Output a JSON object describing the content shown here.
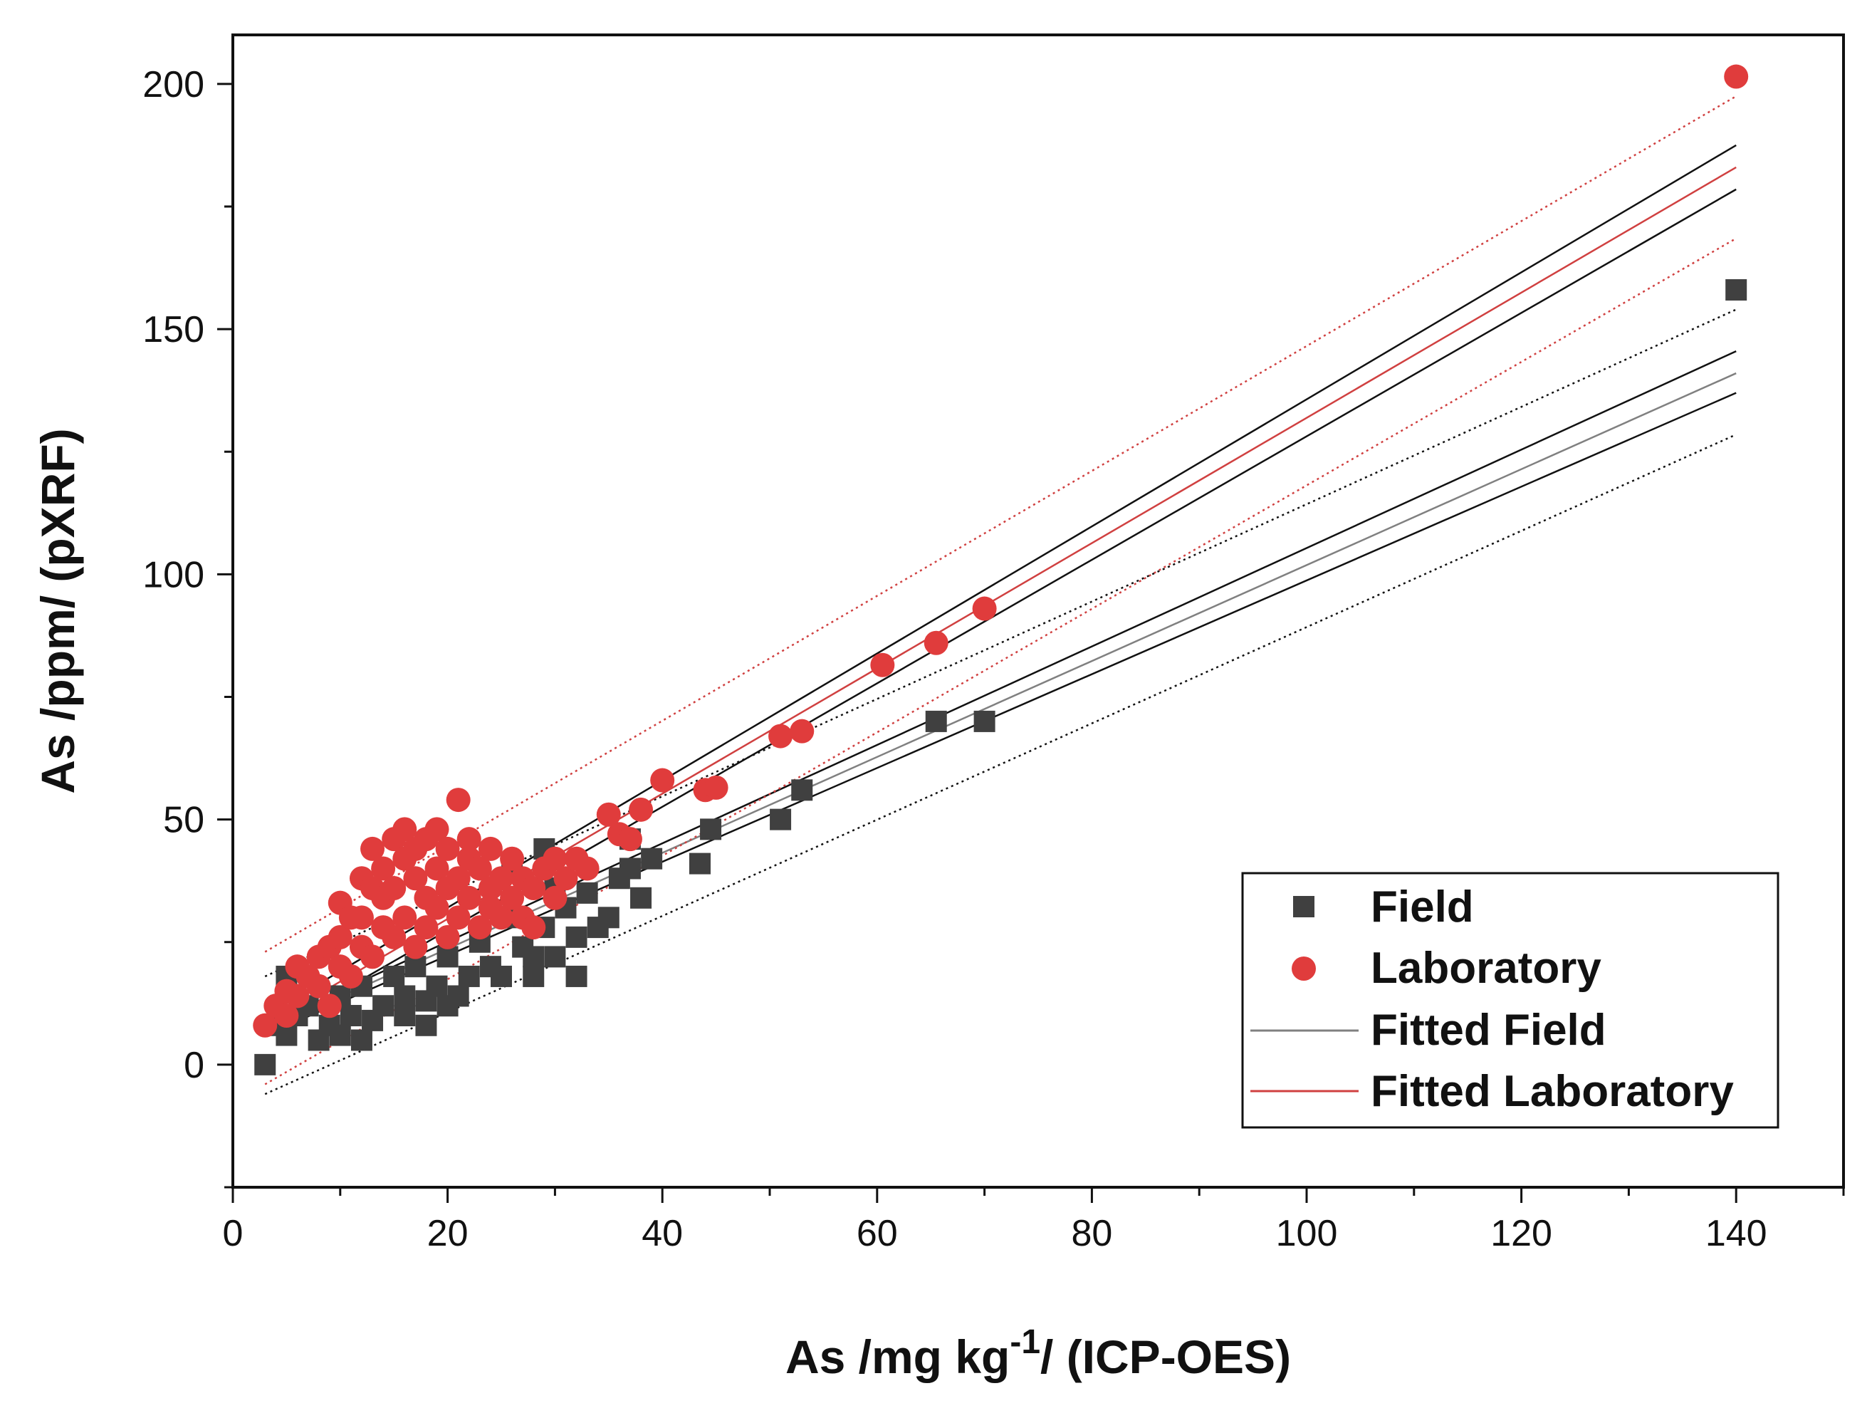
{
  "chart_data": {
    "type": "scatter",
    "title": "",
    "xlabel": "As /mg kg-1/ (ICP-OES)",
    "xlabel_parts": {
      "main": "As /mg kg",
      "sup": "-1",
      "tail": "/ (ICP-OES)"
    },
    "ylabel": "As /ppm/ (pXRF)",
    "xlim": [
      0,
      150
    ],
    "ylim": [
      -25,
      210
    ],
    "xticks": [
      0,
      20,
      40,
      60,
      80,
      100,
      120,
      140
    ],
    "xtick_labels": [
      "0",
      "20",
      "40",
      "60",
      "80",
      "100",
      "120",
      "140"
    ],
    "yticks": [
      0,
      50,
      100,
      150,
      200
    ],
    "ytick_labels": [
      "0",
      "50",
      "100",
      "150",
      "200"
    ],
    "grid": false,
    "legend_position": "bottom-right",
    "legend": [
      {
        "label": "Field",
        "marker": "square",
        "color": "#404040"
      },
      {
        "label": "Laboratory",
        "marker": "circle",
        "color": "#e03c3c"
      },
      {
        "label": "Fitted Field",
        "marker": "line",
        "color": "#808080"
      },
      {
        "label": "Fitted Laboratory",
        "marker": "line",
        "color": "#d04040"
      }
    ],
    "series": [
      {
        "name": "Field",
        "marker": "square",
        "color": "#404040",
        "points": [
          [
            3,
            0
          ],
          [
            4,
            8
          ],
          [
            5,
            18
          ],
          [
            5,
            6
          ],
          [
            6,
            10
          ],
          [
            7,
            12
          ],
          [
            8,
            5
          ],
          [
            9,
            8
          ],
          [
            10,
            14
          ],
          [
            10,
            6
          ],
          [
            11,
            10
          ],
          [
            12,
            5
          ],
          [
            12,
            16
          ],
          [
            13,
            9
          ],
          [
            14,
            12
          ],
          [
            15,
            18
          ],
          [
            16,
            10
          ],
          [
            16,
            14
          ],
          [
            17,
            20
          ],
          [
            18,
            8
          ],
          [
            18,
            13
          ],
          [
            19,
            16
          ],
          [
            20,
            12
          ],
          [
            20,
            22
          ],
          [
            21,
            14
          ],
          [
            22,
            18
          ],
          [
            23,
            25
          ],
          [
            24,
            20
          ],
          [
            25,
            18
          ],
          [
            26,
            30
          ],
          [
            26,
            40
          ],
          [
            27,
            24
          ],
          [
            28,
            18
          ],
          [
            28,
            22
          ],
          [
            29,
            44
          ],
          [
            29,
            28
          ],
          [
            30,
            22
          ],
          [
            30,
            36
          ],
          [
            31,
            32
          ],
          [
            32,
            18
          ],
          [
            32,
            26
          ],
          [
            33,
            35
          ],
          [
            34,
            28
          ],
          [
            35,
            30
          ],
          [
            36,
            38
          ],
          [
            37,
            40
          ],
          [
            37,
            46
          ],
          [
            38,
            34
          ],
          [
            39,
            42
          ],
          [
            43.5,
            41
          ],
          [
            44.5,
            48
          ],
          [
            51,
            50
          ],
          [
            53,
            56
          ],
          [
            65.5,
            70
          ],
          [
            70,
            70
          ],
          [
            140,
            158
          ]
        ]
      },
      {
        "name": "Laboratory",
        "marker": "circle",
        "color": "#e03c3c",
        "points": [
          [
            3,
            8
          ],
          [
            4,
            12
          ],
          [
            5,
            10
          ],
          [
            5,
            15
          ],
          [
            6,
            14
          ],
          [
            6,
            20
          ],
          [
            7,
            18
          ],
          [
            8,
            22
          ],
          [
            8,
            16
          ],
          [
            9,
            24
          ],
          [
            9,
            12
          ],
          [
            10,
            33
          ],
          [
            10,
            20
          ],
          [
            10,
            26
          ],
          [
            11,
            30
          ],
          [
            11,
            18
          ],
          [
            12,
            38
          ],
          [
            12,
            24
          ],
          [
            12,
            30
          ],
          [
            13,
            36
          ],
          [
            13,
            22
          ],
          [
            13,
            44
          ],
          [
            14,
            28
          ],
          [
            14,
            40
          ],
          [
            14,
            34
          ],
          [
            15,
            46
          ],
          [
            15,
            26
          ],
          [
            15,
            36
          ],
          [
            16,
            42
          ],
          [
            16,
            30
          ],
          [
            16,
            48
          ],
          [
            17,
            38
          ],
          [
            17,
            44
          ],
          [
            17,
            24
          ],
          [
            18,
            34
          ],
          [
            18,
            46
          ],
          [
            18,
            28
          ],
          [
            19,
            40
          ],
          [
            19,
            48
          ],
          [
            19,
            32
          ],
          [
            20,
            36
          ],
          [
            20,
            44
          ],
          [
            20,
            26
          ],
          [
            21,
            54
          ],
          [
            21,
            38
          ],
          [
            21,
            30
          ],
          [
            22,
            42
          ],
          [
            22,
            34
          ],
          [
            22,
            46
          ],
          [
            23,
            40
          ],
          [
            23,
            28
          ],
          [
            24,
            36
          ],
          [
            24,
            44
          ],
          [
            24,
            32
          ],
          [
            25,
            38
          ],
          [
            25,
            30
          ],
          [
            26,
            34
          ],
          [
            26,
            42
          ],
          [
            27,
            30
          ],
          [
            27,
            38
          ],
          [
            28,
            36
          ],
          [
            28,
            28
          ],
          [
            29,
            40
          ],
          [
            30,
            34
          ],
          [
            30,
            42
          ],
          [
            31,
            38
          ],
          [
            32,
            42
          ],
          [
            33,
            40
          ],
          [
            35,
            51
          ],
          [
            36,
            47
          ],
          [
            37,
            46
          ],
          [
            38,
            52
          ],
          [
            40,
            58
          ],
          [
            44,
            56
          ],
          [
            45,
            56.5
          ],
          [
            51,
            67
          ],
          [
            53,
            68
          ],
          [
            60.5,
            81.5
          ],
          [
            65.5,
            86
          ],
          [
            70,
            93
          ],
          [
            140,
            201.5
          ]
        ]
      }
    ],
    "fits": [
      {
        "name": "Fitted Field",
        "x": [
          3,
          140
        ],
        "y": [
          7,
          141
        ],
        "color": "#808080",
        "style": "solid"
      },
      {
        "name": "Field confidence upper",
        "x": [
          3,
          140
        ],
        "y": [
          8,
          145.5
        ],
        "color": "#111111",
        "style": "solid"
      },
      {
        "name": "Field confidence lower",
        "x": [
          3,
          140
        ],
        "y": [
          6,
          137
        ],
        "color": "#111111",
        "style": "solid"
      },
      {
        "name": "Field prediction upper",
        "x": [
          3,
          140
        ],
        "y": [
          18,
          154
        ],
        "color": "#111111",
        "style": "dotted"
      },
      {
        "name": "Field prediction lower",
        "x": [
          3,
          140
        ],
        "y": [
          -6,
          128.5
        ],
        "color": "#111111",
        "style": "dotted"
      },
      {
        "name": "Fitted Laboratory",
        "x": [
          3,
          140
        ],
        "y": [
          8,
          183
        ],
        "color": "#d04040",
        "style": "solid"
      },
      {
        "name": "Laboratory confidence upper",
        "x": [
          3,
          140
        ],
        "y": [
          10,
          187.5
        ],
        "color": "#111111",
        "style": "solid"
      },
      {
        "name": "Laboratory confidence lower",
        "x": [
          3,
          140
        ],
        "y": [
          6,
          178.5
        ],
        "color": "#111111",
        "style": "solid"
      },
      {
        "name": "Laboratory prediction upper",
        "x": [
          3,
          140
        ],
        "y": [
          23,
          197.5
        ],
        "color": "#d04040",
        "style": "dotted"
      },
      {
        "name": "Laboratory prediction lower",
        "x": [
          3,
          140
        ],
        "y": [
          -4,
          168.5
        ],
        "color": "#d04040",
        "style": "dotted"
      }
    ]
  }
}
